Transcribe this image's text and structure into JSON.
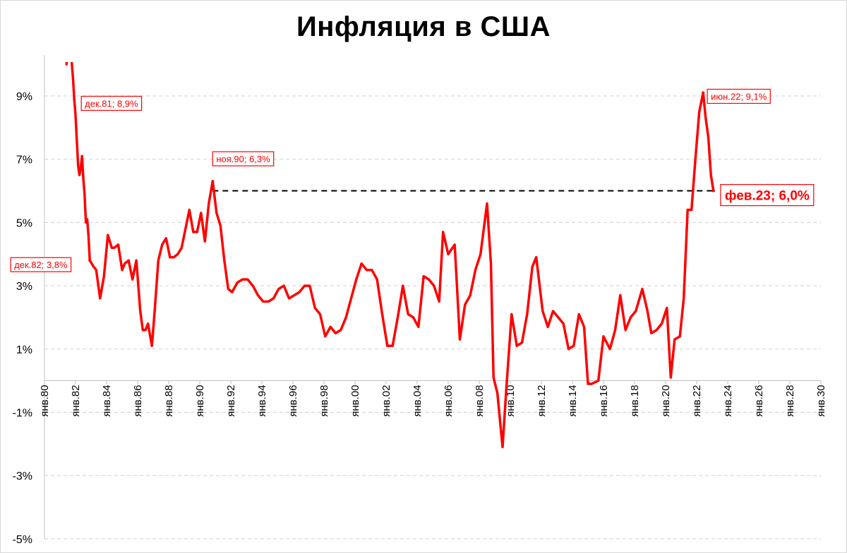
{
  "chart_data": {
    "type": "line",
    "title": "Инфляция в США",
    "xlabel": "",
    "ylabel": "",
    "y_unit": "%",
    "ylim": [
      -5,
      10
    ],
    "y_ticks": [
      "9%",
      "7%",
      "5%",
      "3%",
      "1%",
      "-1%",
      "-3%",
      "-5%"
    ],
    "y_tick_values": [
      9,
      7,
      5,
      3,
      1,
      -1,
      -3,
      -5
    ],
    "x_ticks": [
      "янв.80",
      "янв.82",
      "янв.84",
      "янв.86",
      "янв.88",
      "янв.90",
      "янв.92",
      "янв.94",
      "янв.96",
      "янв.98",
      "янв.00",
      "янв.02",
      "янв.04",
      "янв.06",
      "янв.08",
      "янв.10",
      "янв.12",
      "янв.14",
      "янв.16",
      "янв.18",
      "янв.20",
      "янв.22",
      "янв.24",
      "янв.26",
      "янв.28",
      "янв.30"
    ],
    "x_range": [
      "янв.80",
      "янв.30"
    ],
    "grid": "horizontal dashed",
    "legend": "none",
    "line_color": "#ff0000",
    "reference_line": {
      "value": 6.0,
      "from": "ноя.90",
      "to": "фев.23",
      "style": "dashed",
      "color": "#000000"
    },
    "series": [
      {
        "x": [
          "июн.81",
          "июл.81",
          "авг.81",
          "сен.81",
          "окт.81",
          "ноя.81",
          "дек.81",
          "янв.82",
          "фев.82",
          "мар.82",
          "апр.82",
          "май.82",
          "июн.82",
          "июл.82",
          "авг.82",
          "сен.82",
          "окт.82",
          "ноя.82",
          "дек.82",
          "мар.83",
          "май.83",
          "авг.83",
          "ноя.83",
          "фев.84",
          "май.84",
          "июл.84",
          "окт.84",
          "янв.85",
          "мар.85",
          "июн.85",
          "сен.85",
          "дек.85",
          "мар.86",
          "май.86",
          "июл.86",
          "сен.86",
          "дек.86",
          "фев.87",
          "май.87",
          "авг.87",
          "ноя.87",
          "фев.88",
          "май.88",
          "авг.88",
          "ноя.88",
          "фев.89",
          "май.89",
          "авг.89",
          "ноя.89",
          "фев.90",
          "май.90",
          "авг.90",
          "ноя.90",
          "фев.91",
          "май.91",
          "авг.91",
          "ноя.91",
          "фев.92",
          "июн.92",
          "окт.92",
          "фев.93",
          "июн.93",
          "окт.93",
          "фев.94",
          "июн.94",
          "окт.94",
          "фев.95",
          "июн.95",
          "окт.95",
          "фев.96",
          "июн.96",
          "окт.96",
          "фев.97",
          "июн.97",
          "окт.97",
          "фев.98",
          "июн.98",
          "окт.98",
          "фев.99",
          "июн.99",
          "окт.99",
          "фев.00",
          "июн.00",
          "окт.00",
          "фев.01",
          "июн.01",
          "окт.01",
          "фев.02",
          "июн.02",
          "окт.02",
          "фев.03",
          "июн.03",
          "окт.03",
          "фев.04",
          "июн.04",
          "окт.04",
          "фев.05",
          "июн.05",
          "сен.05",
          "янв.06",
          "июн.06",
          "окт.06",
          "фев.07",
          "июн.07",
          "окт.07",
          "фев.08",
          "июл.08",
          "окт.08",
          "дек.08",
          "мар.09",
          "июл.09",
          "окт.09",
          "фев.10",
          "июн.10",
          "окт.10",
          "фев.11",
          "июн.11",
          "сен.11",
          "фев.12",
          "июн.12",
          "окт.12",
          "фев.13",
          "июн.13",
          "окт.13",
          "фев.14",
          "июн.14",
          "окт.14",
          "янв.15",
          "апр.15",
          "сен.15",
          "янв.16",
          "июн.16",
          "окт.16",
          "фев.17",
          "июн.17",
          "окт.17",
          "фев.18",
          "июл.18",
          "ноя.18",
          "фев.19",
          "июн.19",
          "окт.19",
          "фев.20",
          "май.20",
          "авг.20",
          "дек.20",
          "мар.21",
          "июн.21",
          "сен.21",
          "дек.21",
          "мар.22",
          "июн.22",
          "авг.22",
          "окт.22",
          "дек.22",
          "фев.23"
        ],
        "values": [
          10.0,
          10.8,
          10.8,
          11.0,
          10.1,
          9.6,
          8.9,
          8.4,
          7.6,
          6.8,
          6.5,
          6.7,
          7.1,
          6.4,
          5.9,
          5.0,
          5.1,
          4.6,
          3.8,
          3.6,
          3.5,
          2.6,
          3.3,
          4.6,
          4.2,
          4.2,
          4.3,
          3.5,
          3.7,
          3.8,
          3.2,
          3.8,
          2.2,
          1.6,
          1.6,
          1.8,
          1.1,
          2.1,
          3.8,
          4.3,
          4.5,
          3.9,
          3.9,
          4.0,
          4.2,
          4.8,
          5.4,
          4.7,
          4.7,
          5.3,
          4.4,
          5.6,
          6.3,
          5.3,
          4.9,
          3.8,
          2.9,
          2.8,
          3.1,
          3.2,
          3.2,
          3.0,
          2.7,
          2.5,
          2.5,
          2.6,
          2.9,
          3.0,
          2.6,
          2.7,
          2.8,
          3.0,
          3.0,
          2.3,
          2.1,
          1.4,
          1.7,
          1.5,
          1.6,
          2.0,
          2.6,
          3.2,
          3.7,
          3.5,
          3.5,
          3.2,
          2.1,
          1.1,
          1.1,
          2.0,
          3.0,
          2.1,
          2.0,
          1.7,
          3.3,
          3.2,
          3.0,
          2.5,
          4.7,
          4.0,
          4.3,
          1.3,
          2.4,
          2.7,
          3.5,
          4.0,
          5.6,
          3.7,
          0.1,
          -0.4,
          -2.1,
          -0.2,
          2.1,
          1.1,
          1.2,
          2.1,
          3.6,
          3.9,
          2.2,
          1.7,
          2.2,
          2.0,
          1.8,
          1.0,
          1.1,
          2.1,
          1.7,
          -0.1,
          -0.1,
          0.0,
          1.4,
          1.0,
          1.6,
          2.7,
          1.6,
          2.0,
          2.2,
          2.9,
          2.2,
          1.5,
          1.6,
          1.8,
          2.3,
          0.1,
          1.3,
          1.4,
          2.6,
          5.4,
          5.4,
          7.0,
          8.5,
          9.1,
          8.3,
          7.7,
          6.5,
          6.0
        ]
      }
    ],
    "annotations": [
      {
        "label": "дек.81; 8,9%",
        "x": "дек.81",
        "y": 8.9
      },
      {
        "label": "дек.82; 3,8%",
        "x": "дек.82",
        "y": 3.8
      },
      {
        "label": "ноя.90; 6,3%",
        "x": "ноя.90",
        "y": 6.3
      },
      {
        "label": "июн.22; 9,1%",
        "x": "июн.22",
        "y": 9.1
      },
      {
        "label": "фев.23; 6,0%",
        "x": "фев.23",
        "y": 6.0,
        "emphasis": true
      }
    ]
  }
}
